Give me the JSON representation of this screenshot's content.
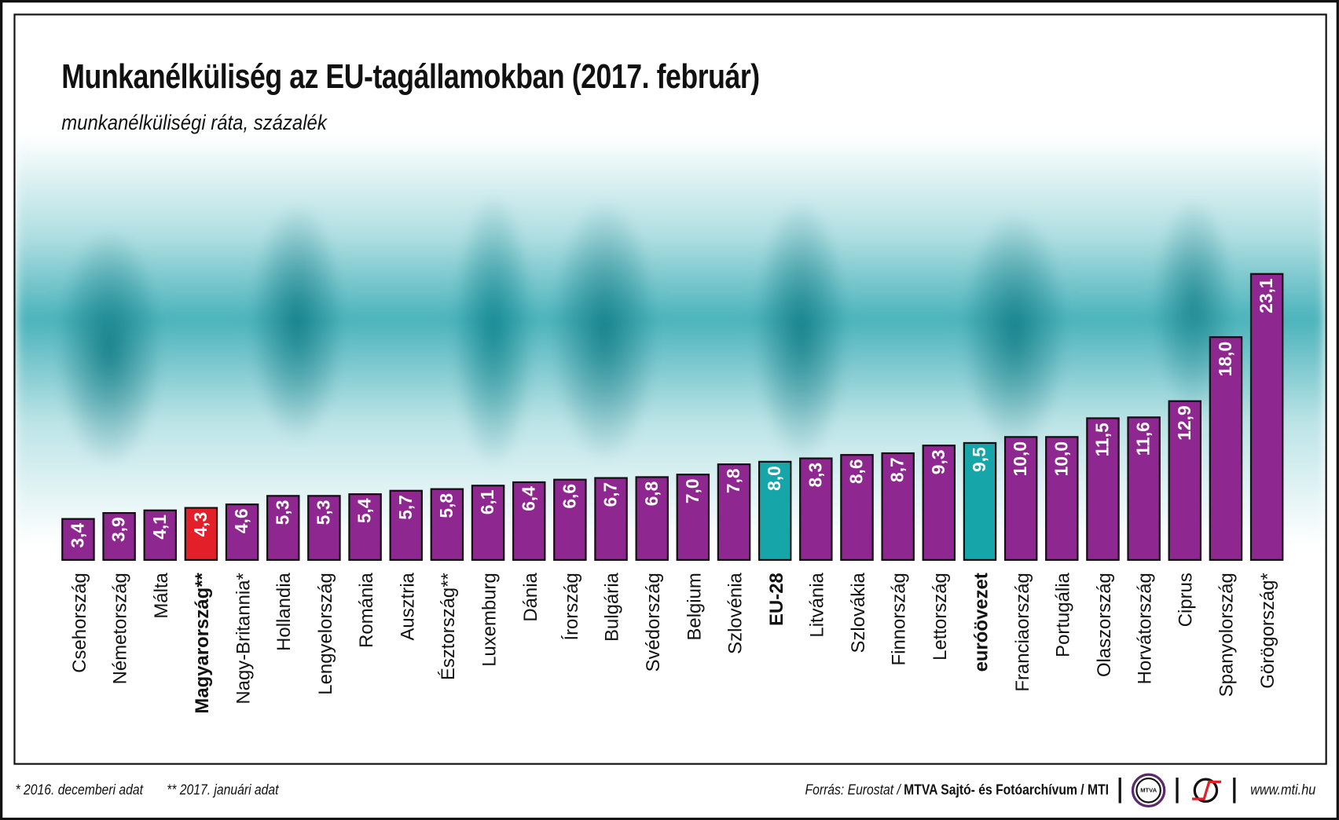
{
  "title": "Munkanélküliség az EU-tagállamokban (2017. február)",
  "subtitle": "munkanélküliségi ráta, százalék",
  "colors": {
    "default": "#8e278f",
    "hungary": "#e3202a",
    "aggregate": "#16a5a8"
  },
  "chart_data": {
    "type": "bar",
    "title": "Munkanélküliség az EU-tagállamokban (2017. február)",
    "ylabel": "munkanélküliségi ráta, százalék",
    "ylim": [
      0,
      23.1
    ],
    "grid": false,
    "categories": [
      "Csehország",
      "Németország",
      "Málta",
      "Magyarország**",
      "Nagy-Britannia*",
      "Hollandia",
      "Lengyelország",
      "Románia",
      "Ausztria",
      "Észtország**",
      "Luxemburg",
      "Dánia",
      "Írország",
      "Bulgária",
      "Svédország",
      "Belgium",
      "Szlovénia",
      "EU-28",
      "Litvánia",
      "Szlovákia",
      "Finnország",
      "Lettország",
      "euróövezet",
      "Franciaország",
      "Portugália",
      "Olaszország",
      "Horvátország",
      "Ciprus",
      "Spanyolország",
      "Görögország*"
    ],
    "values": [
      3.4,
      3.9,
      4.1,
      4.3,
      4.6,
      5.3,
      5.3,
      5.4,
      5.7,
      5.8,
      6.1,
      6.4,
      6.6,
      6.7,
      6.8,
      7.0,
      7.8,
      8.0,
      8.3,
      8.6,
      8.7,
      9.3,
      9.5,
      10.0,
      10.0,
      11.5,
      11.6,
      12.9,
      18.0,
      23.1
    ],
    "value_labels": [
      "3,4",
      "3,9",
      "4,1",
      "4,3",
      "4,6",
      "5,3",
      "5,3",
      "5,4",
      "5,7",
      "5,8",
      "6,1",
      "6,4",
      "6,6",
      "6,7",
      "6,8",
      "7,0",
      "7,8",
      "8,0",
      "8,3",
      "8,6",
      "8,7",
      "9,3",
      "9,5",
      "10,0",
      "10,0",
      "11,5",
      "11,6",
      "12,9",
      "18,0",
      "23,1"
    ],
    "highlight": {
      "Magyarország**": "hungary",
      "EU-28": "aggregate",
      "euróövezet": "aggregate"
    },
    "bold_labels": [
      "Magyarország**",
      "EU-28",
      "euróövezet"
    ]
  },
  "footer": {
    "notes": [
      "* 2016. decemberi adat",
      "** 2017. januári adat"
    ],
    "source_prefix": "Forrás: Eurostat / ",
    "source_bold": "MTVA Sajtó- és Fotóarchívum / MTI",
    "mtva_logo": "MTVA",
    "url": "www.mti.hu"
  }
}
